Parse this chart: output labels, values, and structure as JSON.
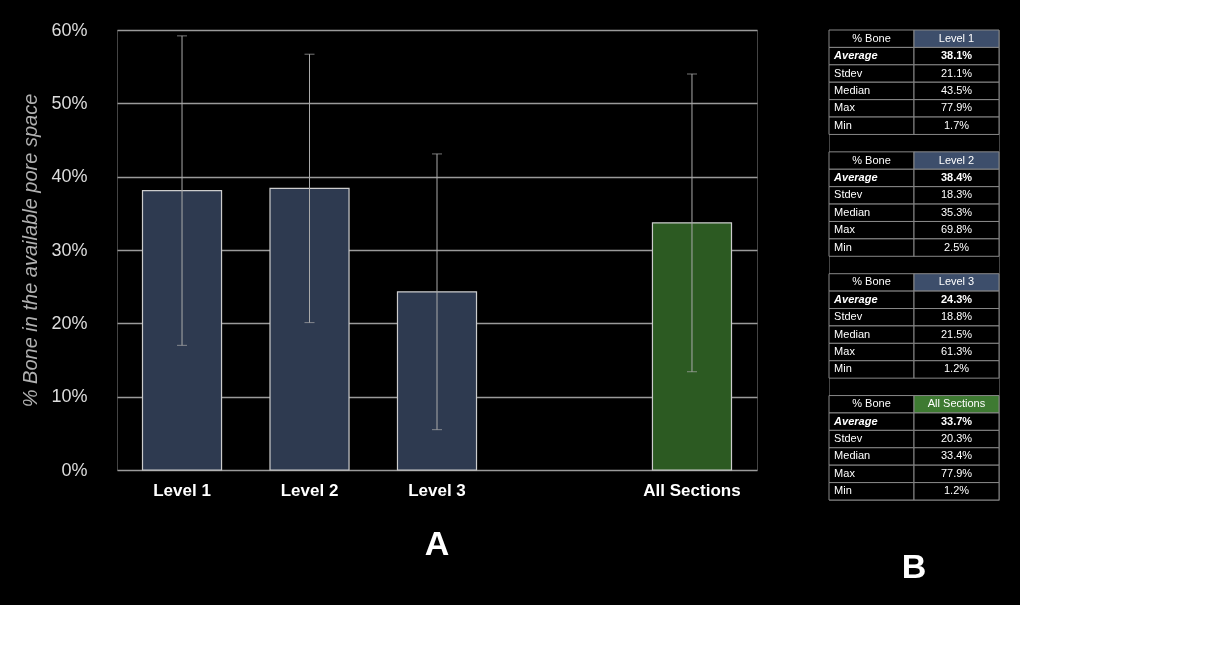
{
  "chart_data": [
    {
      "type": "bar",
      "title": "A",
      "ylabel": "% Bone in the available pore space",
      "categories": [
        "Level 1",
        "Level 2",
        "Level 3",
        null,
        "All Sections"
      ],
      "values": [
        38.1,
        38.4,
        24.3,
        null,
        33.7
      ],
      "errors": [
        21.1,
        18.3,
        18.8,
        null,
        20.3
      ],
      "colors": [
        "#2e3a50",
        "#2e3a50",
        "#2e3a50",
        null,
        "#2c5a22"
      ],
      "ylim": [
        0,
        60
      ],
      "yticks": [
        {
          "value": 0,
          "label": "0%"
        },
        {
          "value": 10,
          "label": "10%"
        },
        {
          "value": 20,
          "label": "20%"
        },
        {
          "value": 30,
          "label": "30%"
        },
        {
          "value": 40,
          "label": "40%"
        },
        {
          "value": 50,
          "label": "50%"
        },
        {
          "value": 60,
          "label": "60%"
        }
      ],
      "grid": "y"
    },
    {
      "type": "other",
      "title": "B",
      "colors": [
        "#3d4e6b",
        "#3d4e6b",
        "#3d4e6b",
        "#3e7a32"
      ],
      "annotations": [
        "% Bone",
        "Level 1",
        "Average",
        "38.1%",
        "Stdev",
        "21.1%",
        "Median",
        "43.5%",
        "Max",
        "77.9%",
        "Min",
        "1.7%",
        "% Bone",
        "Level 2",
        "Average",
        "38.4%",
        "Stdev",
        "18.3%",
        "Median",
        "35.3%",
        "Max",
        "69.8%",
        "Min",
        "2.5%",
        "% Bone",
        "Level 3",
        "Average",
        "24.3%",
        "Stdev",
        "18.8%",
        "Median",
        "21.5%",
        "Max",
        "61.3%",
        "Min",
        "1.2%",
        "% Bone",
        "All Sections",
        "Average",
        "33.7%",
        "Stdev",
        "20.3%",
        "Median",
        "33.4%",
        "Max",
        "77.9%",
        "Min",
        "1.2%"
      ]
    }
  ]
}
